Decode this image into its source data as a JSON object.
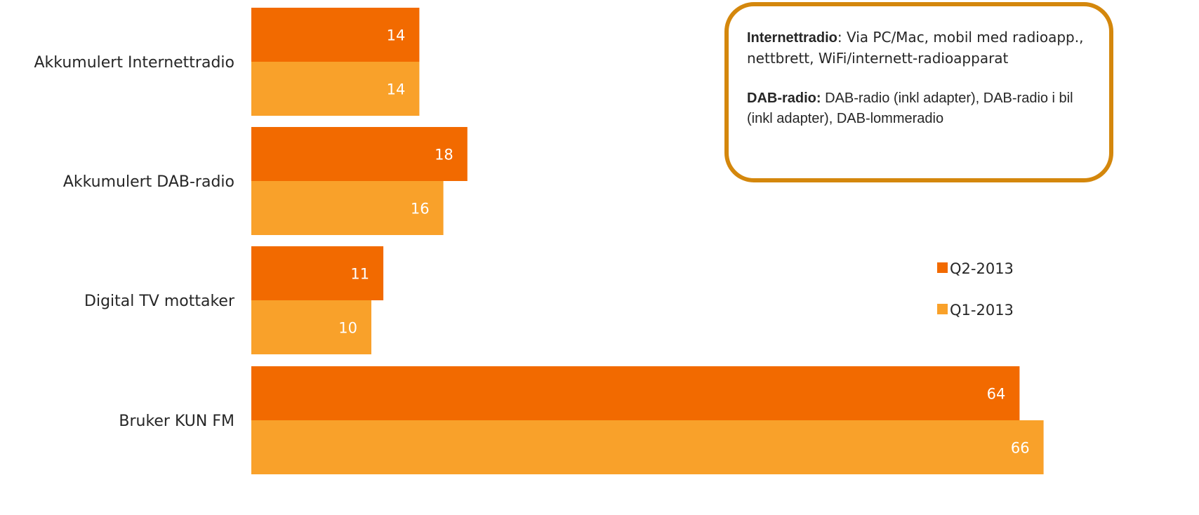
{
  "chart_data": {
    "type": "bar",
    "orientation": "horizontal",
    "categories": [
      "Akkumulert Internettradio",
      "Akkumulert DAB-radio",
      "Digital TV mottaker",
      "Bruker KUN FM"
    ],
    "series": [
      {
        "name": "Q2-2013",
        "values": [
          14,
          18,
          11,
          64
        ],
        "color": "#f26a00"
      },
      {
        "name": "Q1-2013",
        "values": [
          14,
          16,
          10,
          66
        ],
        "color": "#f9a12a"
      }
    ],
    "data_labels": true,
    "grid": false,
    "legend_position": "right"
  },
  "info_box": {
    "internet_term": "Internettradio",
    "internet_text": ": Via PC/Mac, mobil med radioapp.,  nettbrett, WiFi/internett-radioapparat",
    "dab_term": "DAB-radio:",
    "dab_text": " DAB-radio (inkl adapter), DAB-radio i bil (inkl adapter), DAB-lommeradio",
    "border_color": "#d4870c"
  }
}
